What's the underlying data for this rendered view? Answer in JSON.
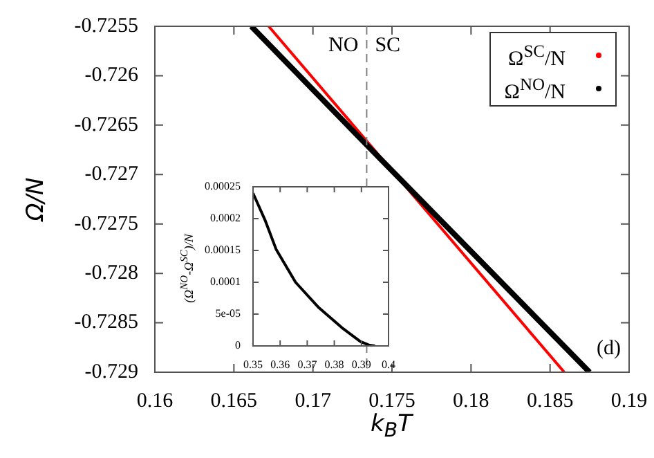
{
  "chart_data": [
    {
      "type": "line",
      "xlabel": "k$_{B}$T",
      "ylabel": "Ω/N",
      "xlim": [
        0.16,
        0.19
      ],
      "xticks": [
        0.16,
        0.165,
        0.17,
        0.175,
        0.18,
        0.185,
        0.19
      ],
      "ylim": [
        -0.729,
        -0.7255
      ],
      "yticks": [
        -0.7255,
        -0.726,
        -0.7265,
        -0.727,
        -0.7275,
        -0.728,
        -0.7285,
        -0.729
      ],
      "legend": "top right",
      "line_style": "solid",
      "series": [
        {
          "name": "Ω$^{NO}$/N",
          "color": "#000000",
          "x": [
            0.1661,
            0.1734,
            0.1875
          ],
          "values": [
            -0.7255,
            -0.7267,
            -0.729
          ]
        },
        {
          "name": "Ω$^{SC}$/N",
          "color": "#ff0000",
          "x": [
            0.1672,
            0.1734,
            0.1859
          ],
          "values": [
            -0.7255,
            -0.72666,
            -0.729
          ]
        }
      ],
      "ref_lines": [
        {
          "axis": "x",
          "value": 0.1734,
          "color": "#808080",
          "line_style": "dashed"
        }
      ],
      "annotations": [
        "NO",
        "SC",
        "(d)"
      ]
    },
    {
      "type": "line",
      "ylabel": "(Ω$^{NO}$-Ω$^{SC}$)/N",
      "xlim": [
        0.35,
        0.4
      ],
      "xticks": [
        0.35,
        0.36,
        0.37,
        0.38,
        0.39,
        0.4
      ],
      "ylim": [
        0,
        0.00025
      ],
      "yticks": [
        0,
        {
          "value": 5e-05,
          "label": "5e-05"
        },
        0.0001,
        0.00015,
        0.0002,
        0.00025
      ],
      "color": "#000000",
      "x": [
        0.35,
        0.3546,
        0.3585,
        0.3657,
        0.3743,
        0.3827,
        0.3896,
        0.393,
        0.395
      ],
      "values": [
        0.00024,
        0.000196,
        0.000152,
        0.0001,
        6e-05,
        2.9e-05,
        7e-06,
        1e-06,
        0
      ]
    }
  ]
}
